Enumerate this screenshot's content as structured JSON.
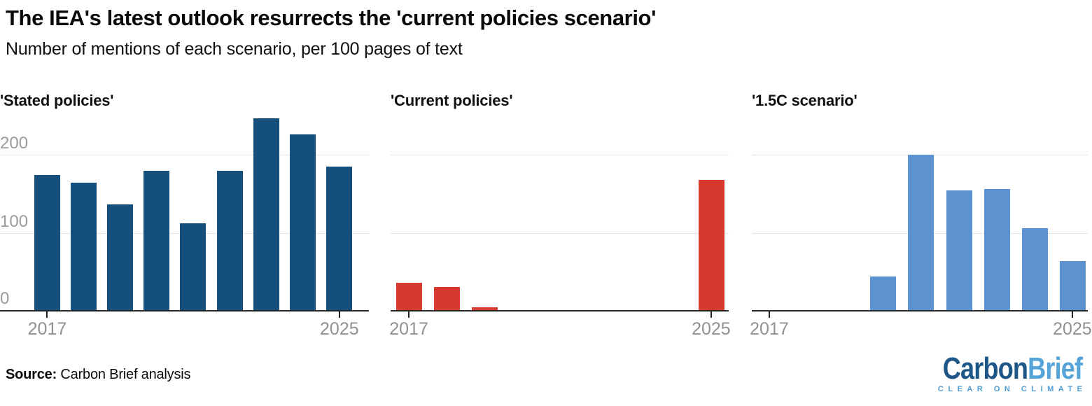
{
  "header": {
    "title": "The IEA's latest outlook resurrects the 'current policies scenario'",
    "subtitle": "Number of mentions of each scenario, per 100 pages of text"
  },
  "chart_data": [
    {
      "type": "bar",
      "title": "'Stated policies'",
      "color": "#15507d",
      "categories": [
        "2017",
        "2018",
        "2019",
        "2020",
        "2021",
        "2022",
        "2023",
        "2024",
        "2025"
      ],
      "values": [
        175,
        165,
        137,
        180,
        113,
        180,
        248,
        227,
        186
      ],
      "xlabel": "",
      "ylabel": "",
      "ylim": [
        0,
        254
      ],
      "yticks": [
        0,
        100,
        200
      ],
      "ytick_labels": [
        "0",
        "100",
        "200"
      ],
      "xtick_labels": [
        "2017",
        "2025"
      ],
      "grid": "horizontal gridlines at 100 and 200",
      "legend": "none"
    },
    {
      "type": "bar",
      "title": "'Current policies'",
      "color": "#d8392f",
      "categories": [
        "2017",
        "2018",
        "2019",
        "2020",
        "2021",
        "2022",
        "2023",
        "2024",
        "2025"
      ],
      "values": [
        37,
        31,
        5,
        0,
        0,
        0,
        0,
        0,
        169
      ],
      "xlabel": "",
      "ylabel": "",
      "ylim": [
        0,
        254
      ],
      "yticks": [
        0,
        100,
        200
      ],
      "ytick_labels": [],
      "xtick_labels": [
        "2017",
        "2025"
      ],
      "grid": "horizontal gridlines at 100 and 200",
      "legend": "none"
    },
    {
      "type": "bar",
      "title": "'1.5C scenario'",
      "color": "#5b92cf",
      "categories": [
        "2017",
        "2018",
        "2019",
        "2020",
        "2021",
        "2022",
        "2023",
        "2024",
        "2025"
      ],
      "values": [
        0,
        0,
        0,
        45,
        201,
        155,
        157,
        107,
        65
      ],
      "xlabel": "",
      "ylabel": "",
      "ylim": [
        0,
        254
      ],
      "yticks": [
        0,
        100,
        200
      ],
      "ytick_labels": [],
      "xtick_labels": [
        "2017",
        "2025"
      ],
      "grid": "horizontal gridlines at 100 and 200",
      "legend": "none"
    }
  ],
  "footer": {
    "source_label": "Source:",
    "source_text": " Carbon Brief analysis",
    "logo": {
      "part1": "Carbon",
      "part2": "Brief",
      "tagline": "CLEAR ON CLIMATE",
      "color_dark": "#1d5687",
      "color_light": "#56a3d8",
      "tagline_color": "#4d9bd5"
    }
  }
}
